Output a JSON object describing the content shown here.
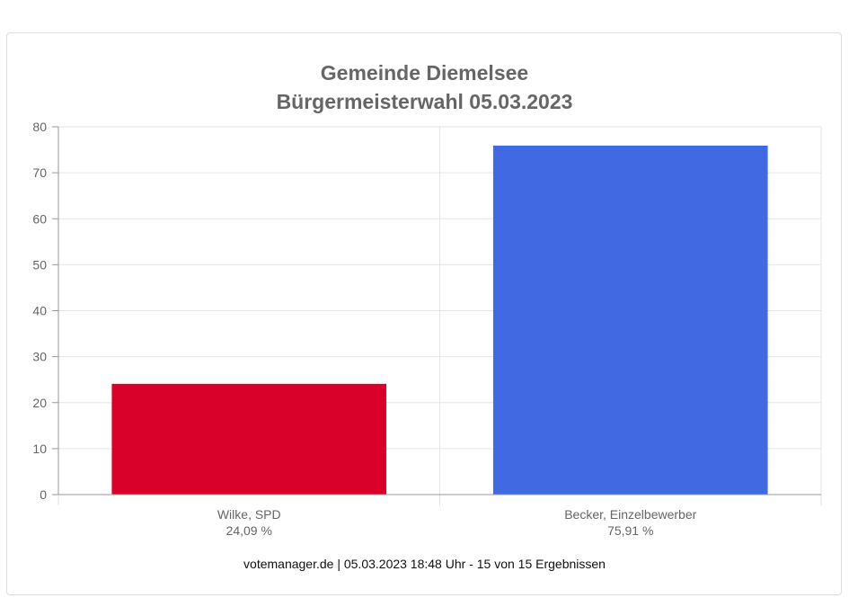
{
  "title_line1": "Gemeinde Diemelsee",
  "title_line2": "Bürgermeisterwahl 05.03.2023",
  "footer": "votemanager.de | 05.03.2023 18:48 Uhr - 15 von 15 Ergebnissen",
  "chart_data": {
    "type": "bar",
    "title": "Gemeinde Diemelsee Bürgermeisterwahl 05.03.2023",
    "categories": [
      "Wilke, SPD",
      "Becker, Einzelbewerber"
    ],
    "value_labels": [
      "24,09 %",
      "75,91 %"
    ],
    "values": [
      24.09,
      75.91
    ],
    "colors": [
      "#d9002a",
      "#4169e1"
    ],
    "ylim": [
      0,
      80
    ],
    "yticks": [
      0,
      10,
      20,
      30,
      40,
      50,
      60,
      70,
      80
    ],
    "grid": true,
    "legend": "none"
  }
}
